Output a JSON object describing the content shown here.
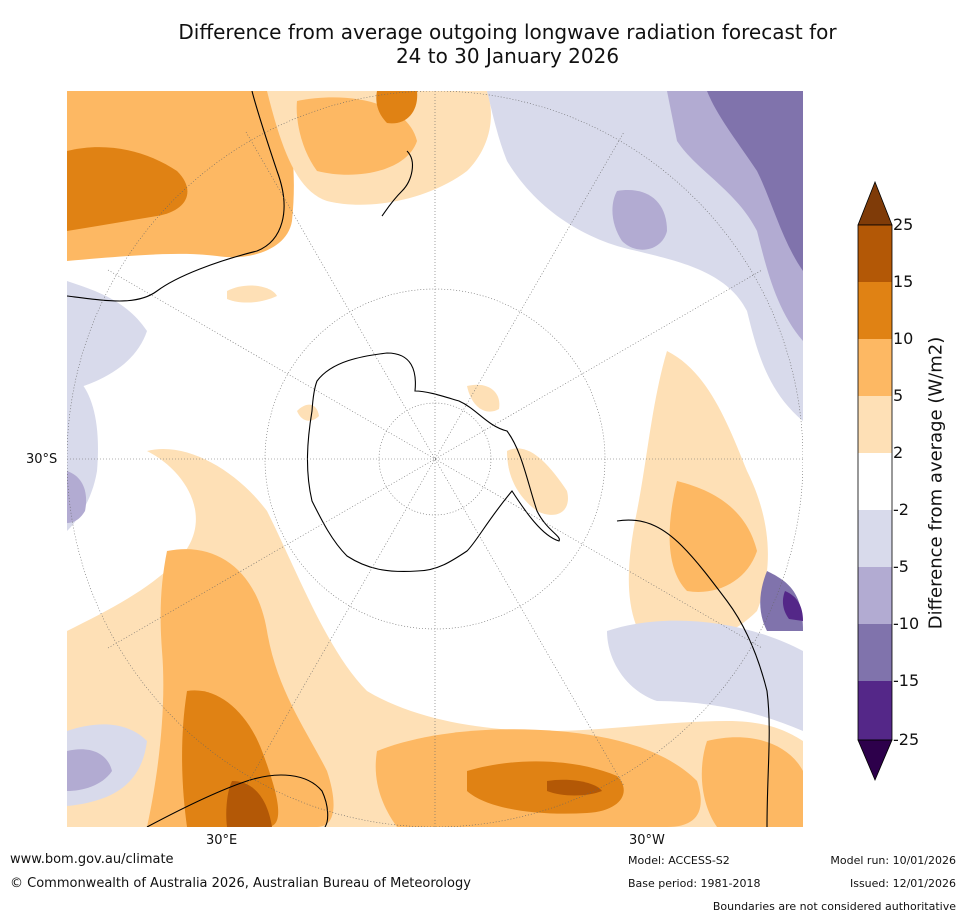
{
  "title": {
    "line1": "Difference from average outgoing longwave radiation forecast for",
    "line2": "24 to 30 January 2026"
  },
  "map": {
    "projection": "south-polar-stereographic",
    "lat_label": "30°S",
    "lon_labels": {
      "east": "30°E",
      "west": "30°W"
    }
  },
  "colorbar": {
    "title": "Difference from average (W/m2)",
    "ticks": [
      "25",
      "15",
      "10",
      "5",
      "2",
      "-2",
      "-5",
      "-10",
      "-15",
      "-25"
    ],
    "colors": {
      "above_25": "#7f3b08",
      "15_25": "#b35806",
      "10_15": "#e08214",
      "5_10": "#fdb863",
      "2_5": "#fee0b6",
      "m2_2": "#ffffff",
      "m5_m2": "#d8daeb",
      "m10_m5": "#b2abd2",
      "m15_m10": "#8073ac",
      "m25_m15": "#542788",
      "below_m25": "#2d004b"
    }
  },
  "footer": {
    "url": "www.bom.gov.au/climate",
    "copyright": "© Commonwealth of Australia 2026, Australian Bureau of Meteorology",
    "model": "Model: ACCESS-S2",
    "base_period": "Base period: 1981-2018",
    "model_run": "Model run: 10/01/2026",
    "issued": "Issued: 12/01/2026",
    "disclaimer": "Boundaries are not considered authoritative"
  }
}
